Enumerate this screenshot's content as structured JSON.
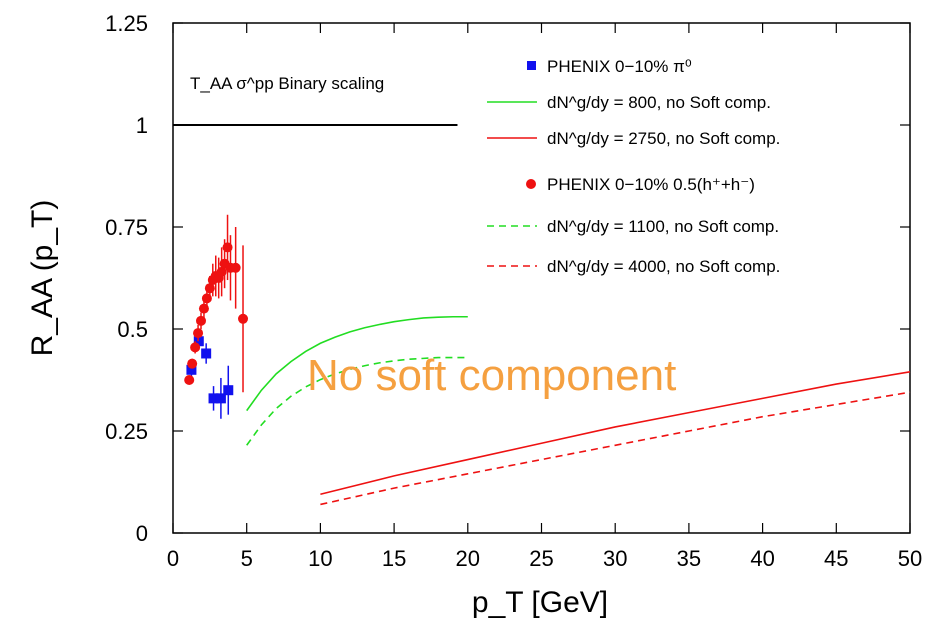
{
  "chart_data": {
    "type": "line",
    "xlabel": "p_T [GeV]",
    "ylabel": "R_AA (p_T)",
    "xlim": [
      0,
      50
    ],
    "ylim": [
      0,
      1.25
    ],
    "xticks": [
      0,
      5,
      10,
      15,
      20,
      25,
      30,
      35,
      40,
      45,
      50
    ],
    "yticks": [
      0,
      0.25,
      0.5,
      0.75,
      1,
      1.25
    ],
    "ytick_labels": [
      "0",
      "0.25",
      "0.5",
      "0.75",
      "1",
      "1.25"
    ],
    "grid": false,
    "legend_position": "top-right",
    "annotations": {
      "binary_scaling": "T_AA σ^pp Binary scaling",
      "no_soft": "No soft component"
    },
    "colors": {
      "green": "#22dd22",
      "red": "#ee1111",
      "blue": "#1111ee",
      "orange": "#f5a040",
      "black": "#000000"
    },
    "series": [
      {
        "name": "PHENIX 0−10% π⁰",
        "kind": "points",
        "marker": "square",
        "color": "#1111ee",
        "x": [
          1.25,
          1.75,
          2.25,
          2.75,
          3.25,
          3.75
        ],
        "y": [
          0.4,
          0.47,
          0.44,
          0.33,
          0.33,
          0.35
        ],
        "yerr": [
          0.02,
          0.02,
          0.025,
          0.03,
          0.05,
          0.06
        ]
      },
      {
        "name": "dN^g/dy = 800, no Soft comp.",
        "kind": "line",
        "style": "solid",
        "color": "#22dd22",
        "x": [
          5,
          6,
          7,
          8,
          9,
          10,
          11,
          12,
          13,
          14,
          15,
          16,
          17,
          18,
          19,
          20
        ],
        "y": [
          0.3,
          0.35,
          0.39,
          0.42,
          0.445,
          0.465,
          0.48,
          0.493,
          0.503,
          0.511,
          0.518,
          0.523,
          0.527,
          0.529,
          0.53,
          0.53
        ]
      },
      {
        "name": "dN^g/dy = 2750, no Soft comp.",
        "kind": "line",
        "style": "solid",
        "color": "#ee1111",
        "x": [
          10,
          15,
          20,
          25,
          30,
          35,
          40,
          45,
          50
        ],
        "y": [
          0.095,
          0.14,
          0.18,
          0.22,
          0.26,
          0.295,
          0.33,
          0.365,
          0.395
        ]
      },
      {
        "name": "PHENIX 0−10% 0.5(h⁺+h⁻)",
        "kind": "points",
        "marker": "circle",
        "color": "#ee1111",
        "x": [
          1.1,
          1.3,
          1.5,
          1.7,
          1.9,
          2.1,
          2.3,
          2.5,
          2.7,
          2.9,
          3.1,
          3.3,
          3.5,
          3.7,
          3.9,
          4.25,
          4.75
        ],
        "y": [
          0.375,
          0.415,
          0.455,
          0.49,
          0.52,
          0.55,
          0.575,
          0.6,
          0.62,
          0.63,
          0.625,
          0.64,
          0.66,
          0.7,
          0.65,
          0.65,
          0.525
        ],
        "yerr": [
          0.01,
          0.012,
          0.015,
          0.02,
          0.02,
          0.025,
          0.03,
          0.03,
          0.04,
          0.05,
          0.05,
          0.06,
          0.06,
          0.08,
          0.08,
          0.1,
          0.18
        ]
      },
      {
        "name": "dN^g/dy = 1100, no Soft comp.",
        "kind": "line",
        "style": "dashed",
        "color": "#22dd22",
        "x": [
          5,
          6,
          7,
          8,
          9,
          10,
          11,
          12,
          13,
          14,
          15,
          16,
          17,
          18,
          19,
          20
        ],
        "y": [
          0.215,
          0.265,
          0.305,
          0.335,
          0.358,
          0.376,
          0.39,
          0.401,
          0.41,
          0.417,
          0.422,
          0.426,
          0.428,
          0.43,
          0.43,
          0.43
        ]
      },
      {
        "name": "dN^g/dy = 4000, no Soft comp.",
        "kind": "line",
        "style": "dashed",
        "color": "#ee1111",
        "x": [
          10,
          15,
          20,
          25,
          30,
          35,
          40,
          45,
          50
        ],
        "y": [
          0.07,
          0.11,
          0.145,
          0.18,
          0.215,
          0.25,
          0.285,
          0.315,
          0.345
        ]
      },
      {
        "name": "",
        "kind": "line",
        "style": "solid",
        "color": "#000000",
        "x": [
          0,
          19.3
        ],
        "y": [
          1,
          1
        ]
      }
    ]
  }
}
